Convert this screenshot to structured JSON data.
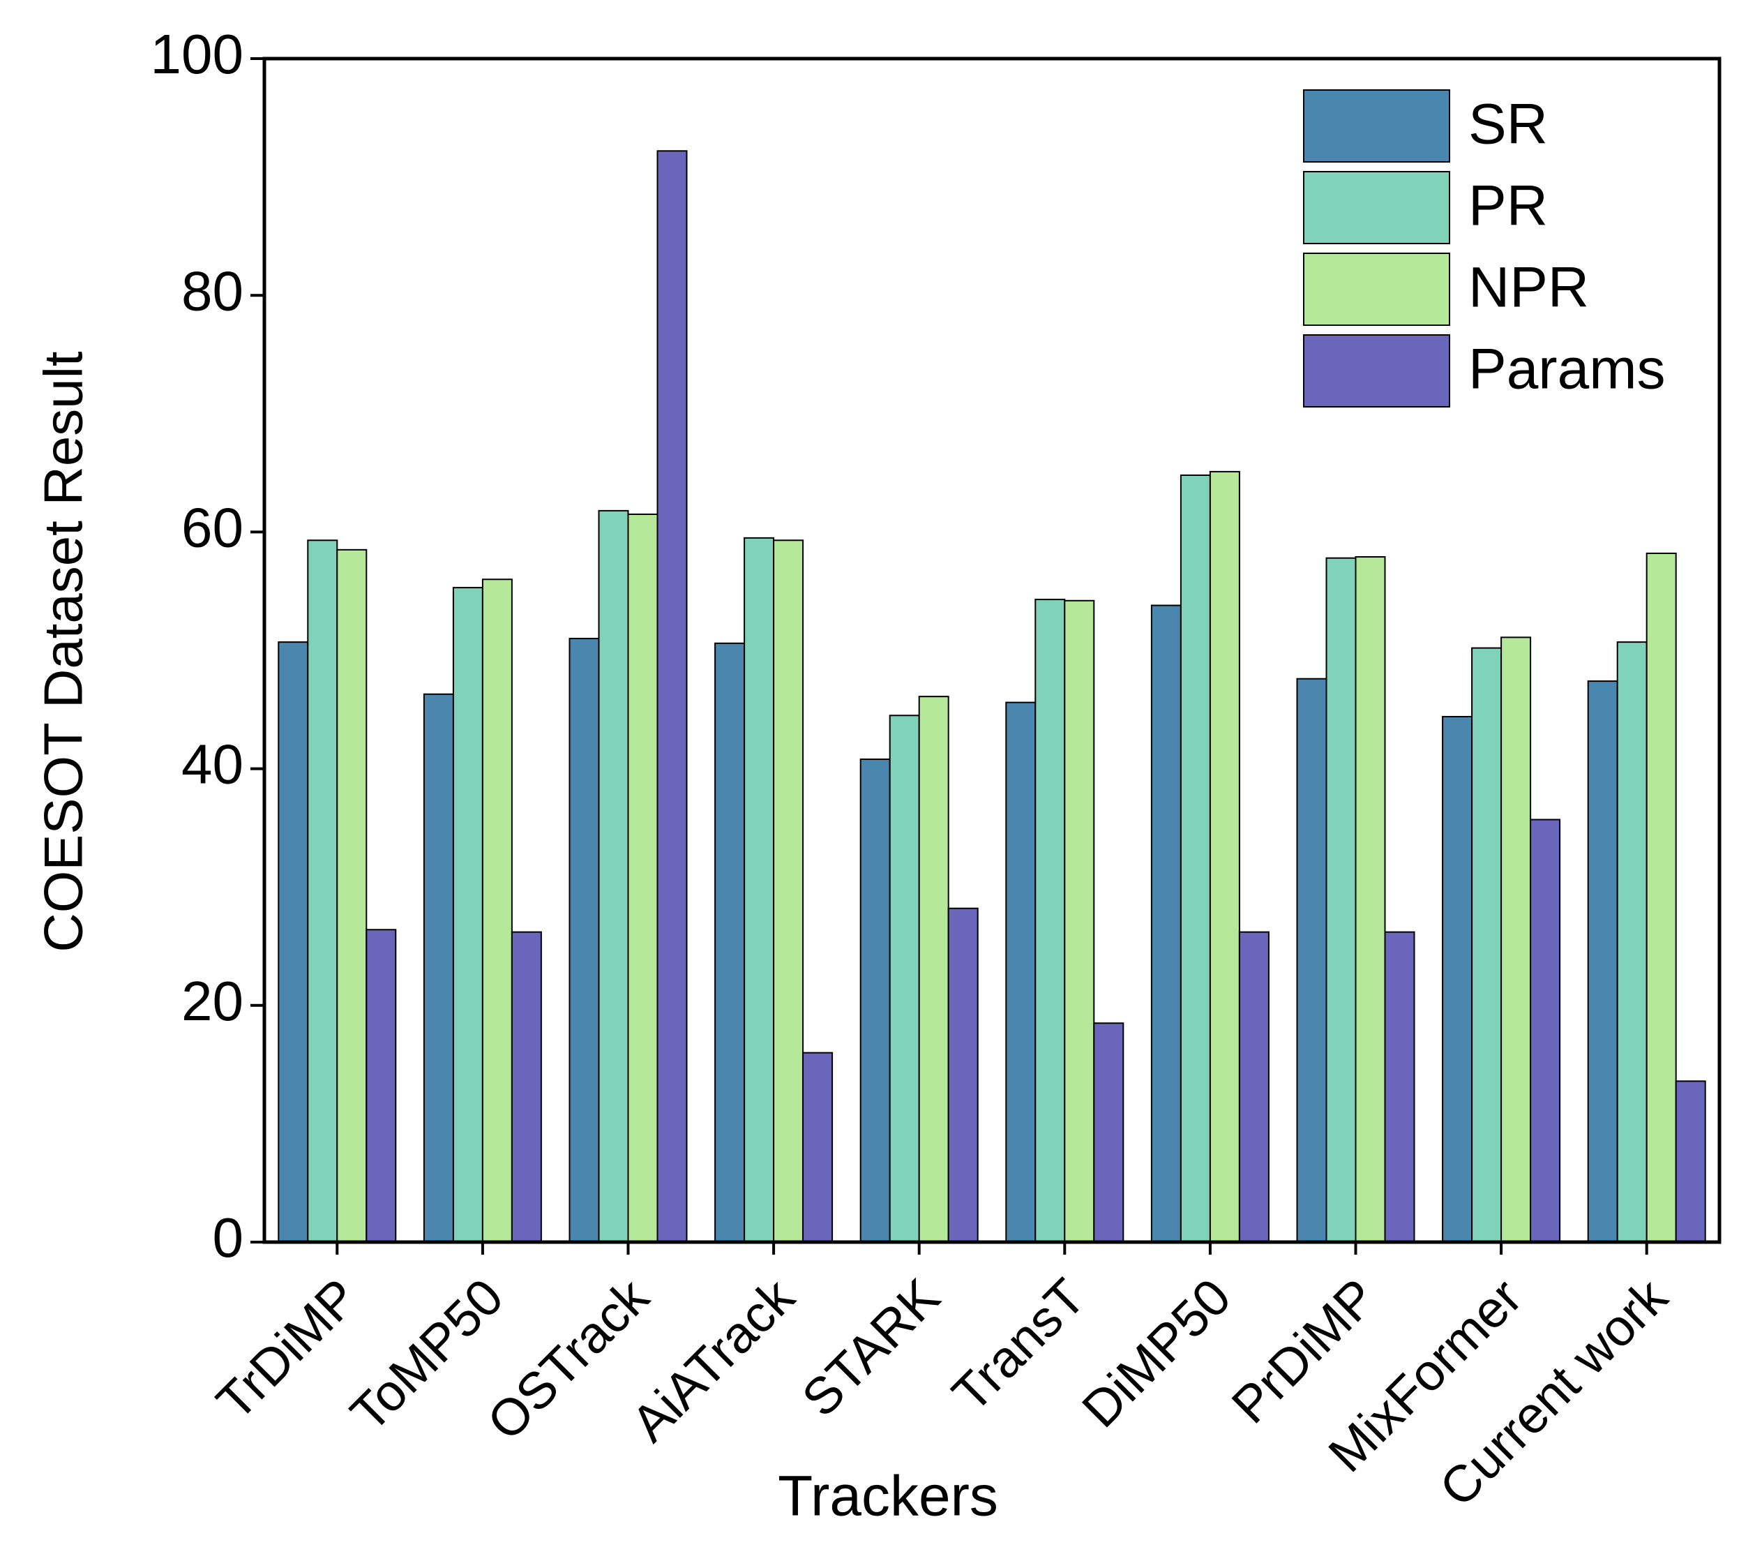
{
  "chart_data": {
    "type": "bar",
    "x_label": "Trackers",
    "y_label": "COESOT Dataset Result",
    "categories": [
      "TrDiMP",
      "ToMP50",
      "OSTrack",
      "AiATrack",
      "STARK",
      "TransT",
      "DiMP50",
      "PrDiMP",
      "MixFormer",
      "Current work"
    ],
    "series": [
      {
        "name": "SR",
        "color": "#4a86ad",
        "values": [
          50.7,
          46.3,
          51.0,
          50.6,
          40.8,
          45.6,
          53.8,
          47.6,
          44.4,
          47.4
        ]
      },
      {
        "name": "PR",
        "color": "#80d2b8",
        "values": [
          59.3,
          55.3,
          61.8,
          59.5,
          44.5,
          54.3,
          64.8,
          57.8,
          50.2,
          50.7
        ]
      },
      {
        "name": "NPR",
        "color": "#b5e898",
        "values": [
          58.5,
          56.0,
          61.5,
          59.3,
          46.1,
          54.2,
          65.1,
          57.9,
          51.1,
          58.2
        ]
      },
      {
        "name": "Params",
        "color": "#6a66bb",
        "values": [
          26.4,
          26.2,
          92.2,
          16.0,
          28.2,
          18.5,
          26.2,
          26.2,
          35.7,
          13.6
        ]
      }
    ],
    "ylim": [
      0,
      100
    ],
    "yticks": [
      0,
      20,
      40,
      60,
      80,
      100
    ],
    "legend": "top-right"
  }
}
